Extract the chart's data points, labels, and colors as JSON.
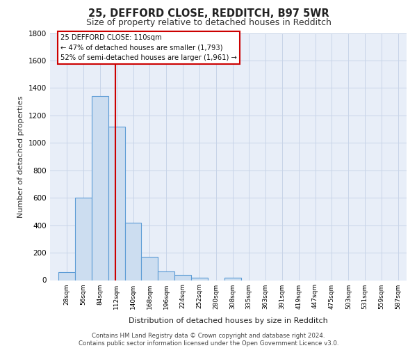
{
  "title1": "25, DEFFORD CLOSE, REDDITCH, B97 5WR",
  "title2": "Size of property relative to detached houses in Redditch",
  "xlabel": "Distribution of detached houses by size in Redditch",
  "ylabel": "Number of detached properties",
  "bin_labels": [
    "28sqm",
    "56sqm",
    "84sqm",
    "112sqm",
    "140sqm",
    "168sqm",
    "196sqm",
    "224sqm",
    "252sqm",
    "280sqm",
    "308sqm",
    "335sqm",
    "363sqm",
    "391sqm",
    "419sqm",
    "447sqm",
    "475sqm",
    "503sqm",
    "531sqm",
    "559sqm",
    "587sqm"
  ],
  "bin_left_edges": [
    14,
    42,
    70,
    98,
    126,
    154,
    182,
    210,
    238,
    266,
    294,
    321,
    349,
    377,
    405,
    433,
    461,
    489,
    517,
    545,
    573
  ],
  "bar_heights": [
    60,
    600,
    1340,
    1120,
    420,
    170,
    65,
    40,
    20,
    0,
    20,
    0,
    0,
    0,
    0,
    0,
    0,
    0,
    0,
    0,
    0
  ],
  "bar_color": "#ccddf0",
  "bar_edge_color": "#5b9bd5",
  "bar_edge_width": 0.8,
  "grid_color": "#c8d4e8",
  "bg_color": "#e8eef8",
  "vline_x": 110,
  "vline_color": "#cc0000",
  "annotation_title": "25 DEFFORD CLOSE: 110sqm",
  "annotation_line1": "← 47% of detached houses are smaller (1,793)",
  "annotation_line2": "52% of semi-detached houses are larger (1,961) →",
  "annotation_box_facecolor": "#ffffff",
  "annotation_box_edgecolor": "#cc0000",
  "ylim": [
    0,
    1800
  ],
  "yticks": [
    0,
    200,
    400,
    600,
    800,
    1000,
    1200,
    1400,
    1600,
    1800
  ],
  "xmin": 0,
  "xmax": 601,
  "bin_width": 28,
  "footer": "Contains HM Land Registry data © Crown copyright and database right 2024.\nContains public sector information licensed under the Open Government Licence v3.0."
}
